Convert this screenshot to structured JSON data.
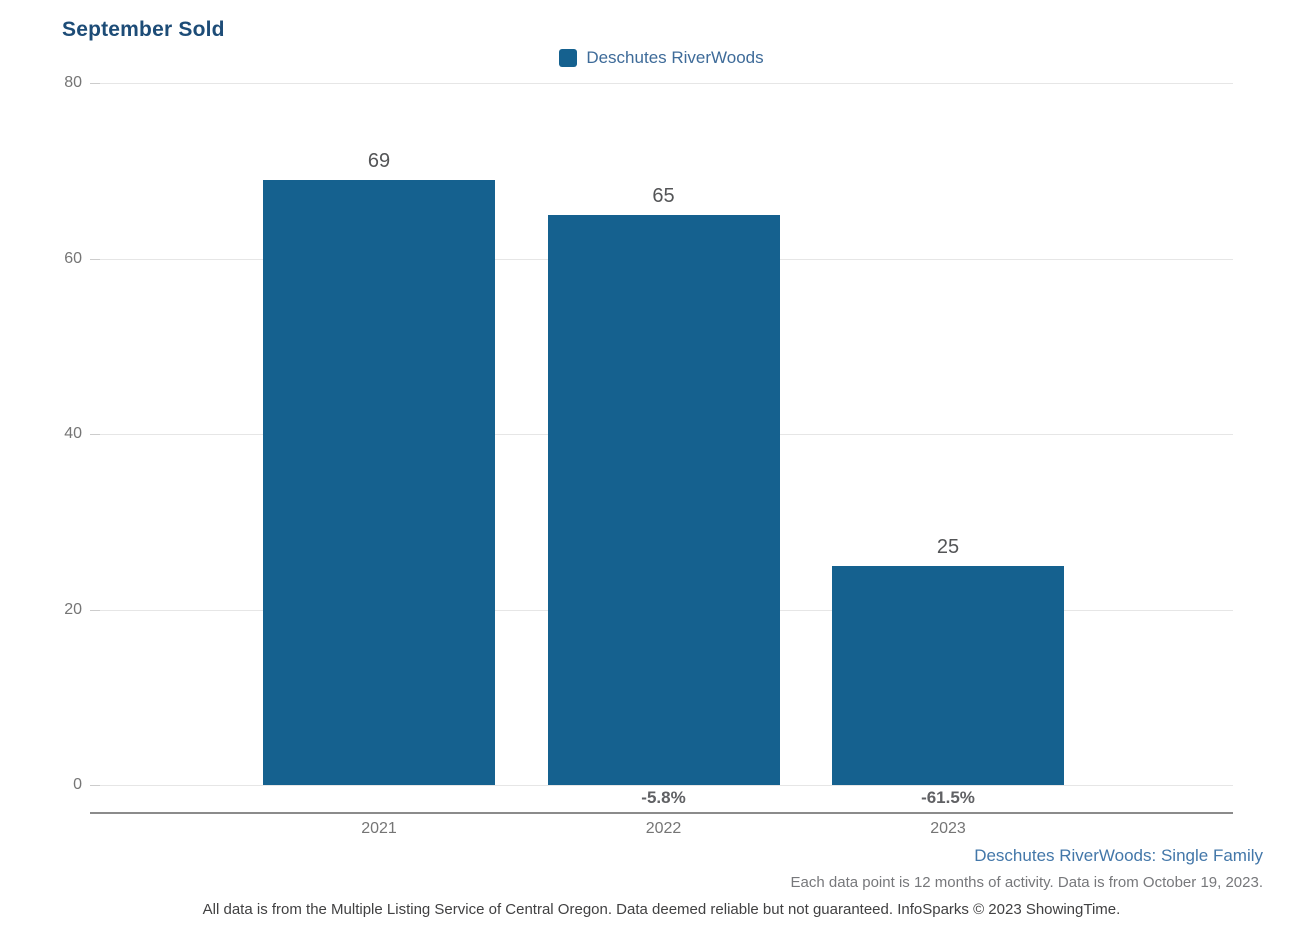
{
  "title": "September Sold",
  "legend": {
    "label": "Deschutes RiverWoods",
    "color": "#15618F"
  },
  "chart_data": {
    "type": "bar",
    "title": "September Sold",
    "categories": [
      "2021",
      "2022",
      "2023"
    ],
    "series": [
      {
        "name": "Deschutes RiverWoods",
        "values": [
          69,
          65,
          25
        ]
      }
    ],
    "value_labels": [
      "69",
      "65",
      "25"
    ],
    "pct_change_labels": [
      "",
      "-5.8%",
      "-61.5%"
    ],
    "ylim": [
      0,
      80
    ],
    "yticks": [
      0,
      20,
      40,
      60,
      80
    ],
    "grid": true,
    "legend_position": "top-center",
    "bar_color": "#15618F",
    "gridline_color": "#e6e6e6"
  },
  "footer": {
    "series_note": "Deschutes RiverWoods: Single Family",
    "data_note": "Each data point is 12 months of activity. Data is from October 19, 2023.",
    "attribution": "All data is from the Multiple Listing Service of Central Oregon. Data deemed reliable but not guaranteed. InfoSparks © 2023 ShowingTime."
  }
}
